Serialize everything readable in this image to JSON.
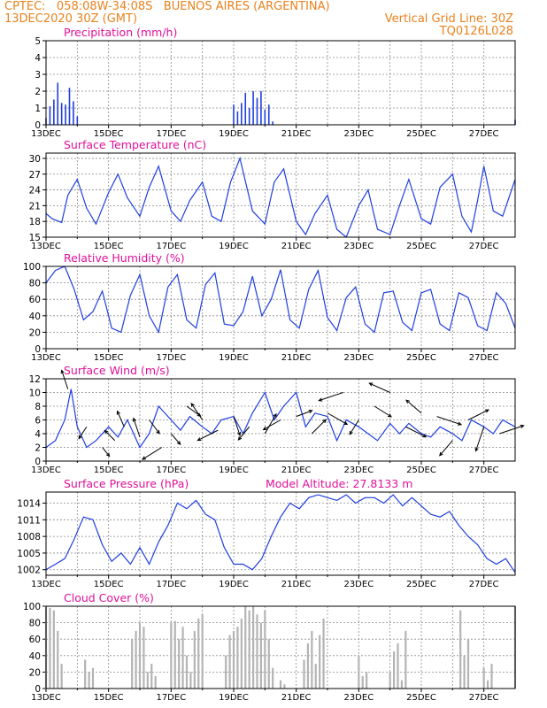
{
  "header": {
    "line1_left": "CPTEC:   058:08W-34:08S   BUENOS AIRES (ARGENTINA)",
    "line2_left": "13DEC2020 30Z (GMT)",
    "line2_right": "Vertical Grid Line: 30Z",
    "line3_right": "TQ0126L028"
  },
  "colors": {
    "header": "#e8821e",
    "title": "#e0109a",
    "line": "#1f3fe0",
    "bar": "#1f3fe0",
    "cloud": "#b4b4b4"
  },
  "chart_data": [
    {
      "type": "bar",
      "title": "Precipitation (mm/h)",
      "ylim": [
        0,
        5
      ],
      "yticks": [
        0,
        1,
        2,
        3,
        4,
        5
      ],
      "xticks": [
        "13DEC",
        "15DEC",
        "17DEC",
        "19DEC",
        "21DEC",
        "23DEC",
        "25DEC",
        "27DEC"
      ],
      "x_days": [
        0.0,
        0.125,
        0.25,
        0.375,
        0.5,
        0.625,
        0.75,
        0.875,
        1.0,
        6.0,
        6.125,
        6.25,
        6.375,
        6.5,
        6.625,
        6.75,
        6.875,
        7.0,
        7.125,
        7.25,
        15.0
      ],
      "values": [
        0.4,
        1.1,
        1.5,
        2.5,
        1.3,
        1.2,
        2.2,
        1.4,
        0.5,
        1.2,
        0.8,
        1.3,
        1.9,
        1.0,
        2.0,
        1.6,
        2.0,
        0.9,
        1.2,
        0.2,
        0.3
      ]
    },
    {
      "type": "line",
      "title": "Surface Temperature (nC)",
      "ylim": [
        15,
        31
      ],
      "yticks": [
        15,
        18,
        21,
        24,
        27,
        30
      ],
      "xticks": [
        "13DEC",
        "15DEC",
        "17DEC",
        "19DEC",
        "21DEC",
        "23DEC",
        "25DEC",
        "27DEC"
      ],
      "x_days": [
        0.0,
        0.2,
        0.5,
        0.7,
        1.0,
        1.3,
        1.6,
        2.0,
        2.3,
        2.6,
        3.0,
        3.3,
        3.6,
        4.0,
        4.3,
        4.6,
        5.0,
        5.3,
        5.6,
        5.9,
        6.2,
        6.6,
        7.0,
        7.3,
        7.6,
        8.0,
        8.3,
        8.6,
        9.0,
        9.3,
        9.6,
        10.0,
        10.3,
        10.6,
        11.0,
        11.3,
        11.6,
        12.0,
        12.3,
        12.6,
        13.0,
        13.3,
        13.6,
        13.8,
        14.0,
        14.3,
        14.6,
        15.0
      ],
      "values": [
        19.5,
        18.5,
        17.8,
        23.0,
        26.0,
        20.5,
        17.5,
        23.5,
        27.0,
        22.5,
        19.0,
        24.5,
        28.5,
        20.0,
        18.0,
        22.0,
        25.5,
        19.0,
        18.0,
        25.5,
        30.0,
        20.0,
        17.5,
        25.5,
        28.0,
        18.0,
        15.5,
        19.5,
        23.0,
        16.5,
        15.0,
        21.0,
        24.0,
        16.5,
        15.5,
        21.0,
        26.0,
        18.5,
        17.5,
        24.5,
        27.0,
        19.0,
        16.0,
        22.0,
        28.5,
        20.0,
        19.0,
        26.0
      ]
    },
    {
      "type": "line",
      "title": "Relative Humidity (%)",
      "ylim": [
        0,
        100
      ],
      "yticks": [
        0,
        20,
        40,
        60,
        80,
        100
      ],
      "xticks": [
        "13DEC",
        "15DEC",
        "17DEC",
        "19DEC",
        "21DEC",
        "23DEC",
        "25DEC",
        "27DEC"
      ],
      "x_days": [
        0.0,
        0.3,
        0.6,
        0.9,
        1.2,
        1.5,
        1.8,
        2.1,
        2.4,
        2.7,
        3.0,
        3.3,
        3.6,
        3.9,
        4.2,
        4.5,
        4.8,
        5.1,
        5.4,
        5.7,
        6.0,
        6.3,
        6.6,
        6.9,
        7.2,
        7.5,
        7.8,
        8.1,
        8.4,
        8.7,
        9.0,
        9.3,
        9.6,
        9.9,
        10.2,
        10.5,
        10.8,
        11.1,
        11.4,
        11.7,
        12.0,
        12.3,
        12.6,
        12.9,
        13.2,
        13.5,
        13.8,
        14.1,
        14.4,
        14.7,
        15.0
      ],
      "values": [
        80,
        95,
        100,
        72,
        35,
        45,
        70,
        25,
        20,
        65,
        90,
        40,
        20,
        75,
        90,
        35,
        25,
        78,
        92,
        30,
        28,
        45,
        88,
        40,
        60,
        96,
        35,
        25,
        72,
        95,
        38,
        22,
        62,
        75,
        30,
        20,
        68,
        70,
        32,
        22,
        68,
        72,
        30,
        22,
        68,
        62,
        28,
        22,
        68,
        55,
        25
      ]
    },
    {
      "type": "line",
      "title": "Surface Wind (m/s)",
      "ylim": [
        0,
        12
      ],
      "yticks": [
        0,
        2,
        4,
        6,
        8,
        10,
        12
      ],
      "xticks": [
        "13DEC",
        "15DEC",
        "17DEC",
        "19DEC",
        "21DEC",
        "23DEC",
        "25DEC",
        "27DEC"
      ],
      "x_days": [
        0.0,
        0.3,
        0.6,
        0.8,
        1.0,
        1.3,
        1.6,
        2.0,
        2.3,
        2.6,
        3.0,
        3.3,
        3.6,
        4.0,
        4.3,
        4.6,
        5.0,
        5.3,
        5.6,
        6.0,
        6.3,
        6.6,
        7.0,
        7.3,
        7.6,
        8.0,
        8.3,
        8.6,
        9.0,
        9.3,
        9.6,
        10.0,
        10.3,
        10.6,
        11.0,
        11.3,
        11.6,
        12.0,
        12.3,
        12.6,
        13.0,
        13.3,
        13.6,
        14.0,
        14.3,
        14.6,
        15.0
      ],
      "values": [
        2,
        3,
        6,
        10.5,
        5,
        2,
        3,
        5,
        3.5,
        6,
        2,
        4,
        8,
        6,
        4.5,
        6.5,
        5,
        4,
        6,
        6.5,
        4,
        7,
        10,
        6,
        8,
        10,
        5,
        7,
        6.5,
        3,
        6,
        5,
        4,
        3,
        5.5,
        4,
        5.5,
        4,
        3.5,
        5,
        4,
        3,
        6,
        5,
        4,
        6,
        5
      ],
      "arrows": {
        "x_days": [
          0.7,
          1.3,
          1.8,
          2.2,
          2.5,
          3.0,
          3.3,
          3.7,
          4.0,
          4.5,
          5.0,
          5.5,
          6.0,
          6.5,
          7.0,
          7.5,
          8.0,
          8.5,
          9.0,
          9.5,
          10.0,
          10.5,
          11.0,
          11.5,
          12.0,
          12.5,
          13.0,
          13.5,
          14.0,
          14.5
        ],
        "u": [
          -0.3,
          -0.4,
          0.4,
          -0.6,
          -0.4,
          -0.2,
          0.6,
          -0.8,
          0.6,
          0.7,
          -0.4,
          -0.8,
          0.3,
          -0.5,
          0.4,
          -0.7,
          0.8,
          0.6,
          0.7,
          -0.9,
          -0.5,
          0.8,
          -0.9,
          0.8,
          -0.7,
          0.9,
          -0.6,
          0.8,
          -0.3,
          0.9
        ],
        "v": [
          0.9,
          -0.6,
          -0.5,
          0.6,
          0.9,
          0.6,
          -0.8,
          -0.5,
          -0.7,
          -0.5,
          0.6,
          -0.4,
          -0.9,
          -0.6,
          0.7,
          -0.4,
          0.3,
          0.6,
          -0.4,
          -0.3,
          -0.8,
          -0.5,
          0.4,
          -0.4,
          0.6,
          -0.3,
          -0.7,
          0.4,
          -0.9,
          0.3
        ],
        "lengths": [
          7,
          5,
          4,
          5,
          6,
          7,
          6,
          8,
          5,
          6,
          7,
          8,
          7,
          6,
          8,
          7,
          6,
          7,
          8,
          9,
          6,
          7,
          8,
          8,
          7,
          9,
          7,
          8,
          9,
          9
        ]
      }
    },
    {
      "type": "line",
      "title": "Surface Pressure (hPa)",
      "annotation": "Model Altitude: 27.8133 m",
      "ylim": [
        1001,
        1016
      ],
      "yticks": [
        1002,
        1005,
        1008,
        1011,
        1014
      ],
      "xticks": [
        "13DEC",
        "15DEC",
        "17DEC",
        "19DEC",
        "21DEC",
        "23DEC",
        "25DEC",
        "27DEC"
      ],
      "x_days": [
        0.0,
        0.3,
        0.6,
        0.9,
        1.2,
        1.5,
        1.8,
        2.1,
        2.4,
        2.7,
        3.0,
        3.3,
        3.6,
        3.9,
        4.2,
        4.5,
        4.8,
        5.1,
        5.4,
        5.7,
        6.0,
        6.3,
        6.6,
        6.9,
        7.2,
        7.5,
        7.8,
        8.1,
        8.4,
        8.7,
        9.0,
        9.3,
        9.6,
        9.9,
        10.2,
        10.5,
        10.8,
        11.1,
        11.4,
        11.7,
        12.0,
        12.3,
        12.6,
        12.9,
        13.2,
        13.5,
        13.8,
        14.1,
        14.4,
        14.7,
        15.0
      ],
      "values": [
        1002,
        1003,
        1004,
        1007.5,
        1011.5,
        1011,
        1006.5,
        1003.5,
        1005,
        1003,
        1006,
        1003,
        1007,
        1010,
        1014,
        1013,
        1014.5,
        1012,
        1011,
        1006,
        1003,
        1003,
        1002,
        1004,
        1008,
        1011.5,
        1014,
        1013,
        1015,
        1015.5,
        1015,
        1014.5,
        1015.5,
        1014,
        1015,
        1015,
        1014,
        1015.5,
        1013.5,
        1015,
        1013.5,
        1012,
        1011.5,
        1012.5,
        1010,
        1008,
        1006.5,
        1004,
        1003,
        1004,
        1001.5
      ]
    },
    {
      "type": "bar",
      "title": "Cloud Cover (%)",
      "ylim": [
        0,
        100
      ],
      "yticks": [
        0,
        20,
        40,
        60,
        80,
        100
      ],
      "xticks": [
        "13DEC",
        "15DEC",
        "17DEC",
        "19DEC",
        "21DEC",
        "23DEC",
        "25DEC",
        "27DEC"
      ],
      "x_days": [
        0.0,
        0.125,
        0.25,
        0.375,
        0.5,
        1.25,
        1.375,
        1.5,
        2.75,
        2.875,
        3.0,
        3.125,
        3.25,
        3.375,
        3.5,
        4.0,
        4.125,
        4.25,
        4.375,
        4.5,
        4.625,
        4.75,
        4.875,
        5.0,
        5.75,
        5.875,
        6.0,
        6.125,
        6.25,
        6.375,
        6.5,
        6.625,
        6.75,
        6.875,
        7.0,
        7.125,
        7.25,
        7.5,
        7.625,
        8.25,
        8.375,
        8.5,
        8.625,
        8.75,
        8.875,
        10.0,
        10.125,
        10.25,
        11.0,
        11.125,
        11.25,
        11.375,
        11.5,
        13.25,
        13.375,
        13.5,
        14.0,
        14.125,
        14.25,
        15.0
      ],
      "values": [
        100,
        98,
        95,
        70,
        30,
        35,
        20,
        25,
        60,
        70,
        80,
        75,
        20,
        30,
        15,
        80,
        82,
        60,
        75,
        40,
        20,
        70,
        85,
        90,
        40,
        65,
        70,
        75,
        85,
        100,
        95,
        100,
        90,
        80,
        95,
        60,
        25,
        10,
        5,
        35,
        55,
        70,
        30,
        65,
        85,
        40,
        15,
        20,
        20,
        45,
        55,
        10,
        70,
        95,
        40,
        60,
        25,
        10,
        30,
        100
      ]
    }
  ]
}
